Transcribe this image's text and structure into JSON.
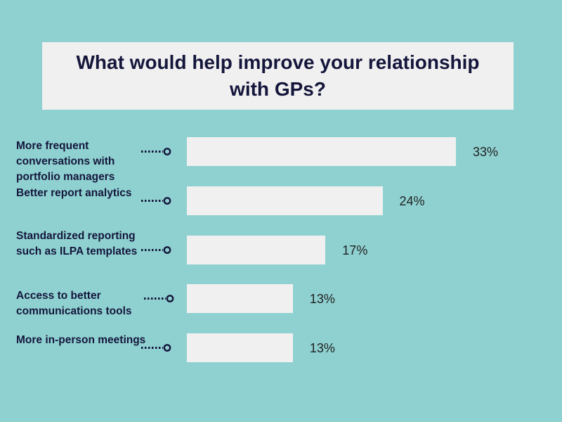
{
  "title": "What would help improve your relationship with GPs?",
  "colors": {
    "background": "#8fd1d1",
    "panel": "#f1f0f0",
    "text": "#14163b"
  },
  "chart_data": {
    "type": "bar",
    "orientation": "horizontal",
    "title": "What would help improve your relationship with GPs?",
    "categories": [
      "More frequent conversations with portfolio managers",
      "Better report analytics",
      "Standardized reporting such as ILPA templates",
      "Access to better communications tools",
      "More in-person meetings"
    ],
    "values": [
      33,
      24,
      17,
      13,
      13
    ],
    "value_labels": [
      "33%",
      "24%",
      "17%",
      "13%",
      "13%"
    ],
    "unit": "%",
    "xlim": [
      0,
      33
    ],
    "grid": false,
    "legend": "none"
  }
}
